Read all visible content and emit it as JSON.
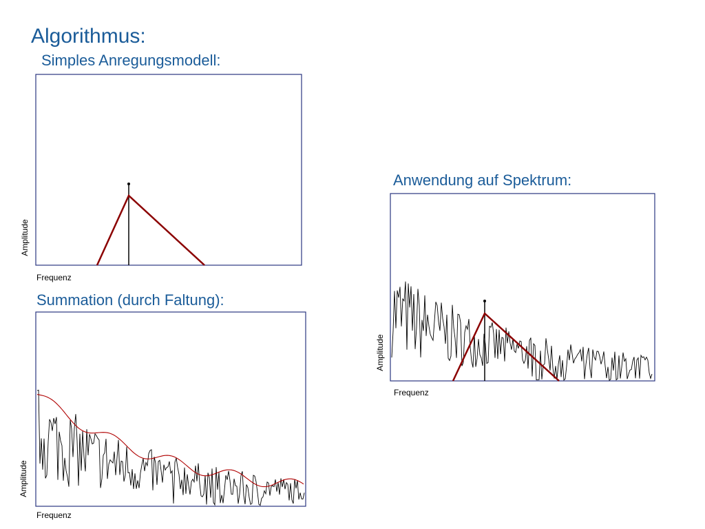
{
  "header": {
    "title": "Algorithmus:"
  },
  "panels": [
    {
      "heading": "Simples Anregungsmodell:",
      "y_label": "Amplitude",
      "x_label": "Frequenz"
    },
    {
      "heading": "Summation (durch Faltung):",
      "y_label": "Amplitude",
      "x_label": "Frequenz"
    },
    {
      "heading": "Anwendung auf Spektrum:",
      "y_label": "Amplitude",
      "x_label": "Frequenz"
    }
  ]
}
